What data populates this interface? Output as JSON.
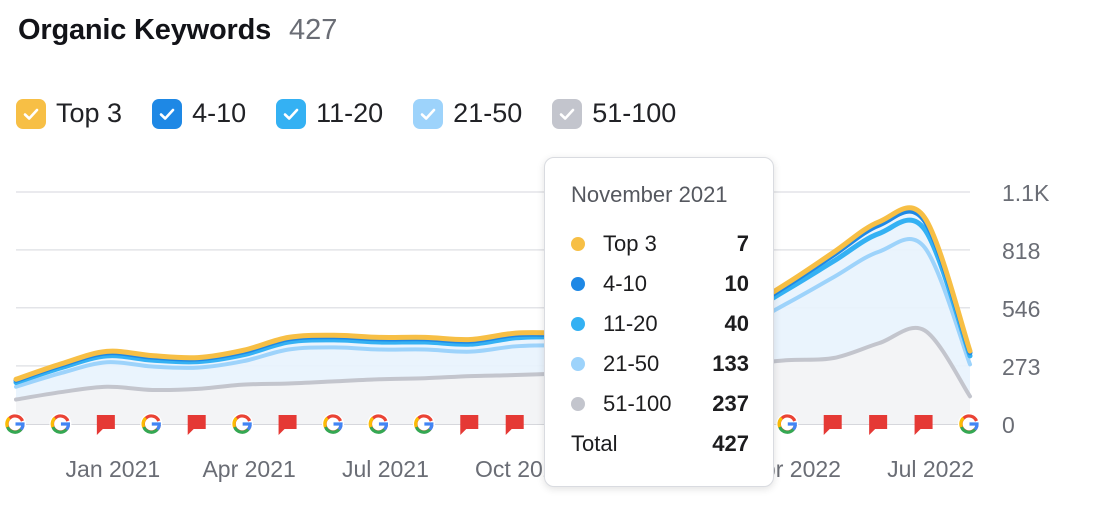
{
  "header": {
    "title": "Organic Keywords",
    "count": "427"
  },
  "legend": [
    {
      "label": "Top 3",
      "color": "#f7bf45"
    },
    {
      "label": "4-10",
      "color": "#1e88e5"
    },
    {
      "label": "11-20",
      "color": "#34b1f3"
    },
    {
      "label": "21-50",
      "color": "#9dd3fb"
    },
    {
      "label": "51-100",
      "color": "#c3c5cd"
    }
  ],
  "tooltip": {
    "title": "November 2021",
    "rows": [
      {
        "label": "Top 3",
        "value": "7",
        "color": "#f7bf45"
      },
      {
        "label": "4-10",
        "value": "10",
        "color": "#1e88e5"
      },
      {
        "label": "11-20",
        "value": "40",
        "color": "#34b1f3"
      },
      {
        "label": "21-50",
        "value": "133",
        "color": "#9dd3fb"
      },
      {
        "label": "51-100",
        "value": "237",
        "color": "#c3c5cd"
      }
    ],
    "total_label": "Total",
    "total_value": "427"
  },
  "chart_data": {
    "type": "area",
    "stacked": true,
    "x": [
      "2020-11",
      "2020-12",
      "2021-01",
      "2021-02",
      "2021-03",
      "2021-04",
      "2021-05",
      "2021-06",
      "2021-07",
      "2021-08",
      "2021-09",
      "2021-10",
      "2021-11",
      "2021-12",
      "2022-01",
      "2022-02",
      "2022-03",
      "2022-04",
      "2022-05",
      "2022-06",
      "2022-07",
      "2022-08"
    ],
    "series": [
      {
        "name": "51-100",
        "color": "#c3c5cd",
        "values": [
          115,
          150,
          175,
          160,
          165,
          185,
          190,
          200,
          210,
          215,
          225,
          230,
          237,
          240,
          250,
          260,
          280,
          300,
          310,
          380,
          440,
          130
        ]
      },
      {
        "name": "21-50",
        "color": "#9dd3fb",
        "values": [
          60,
          90,
          115,
          110,
          100,
          110,
          160,
          160,
          140,
          135,
          115,
          135,
          133,
          125,
          120,
          150,
          180,
          270,
          380,
          430,
          390,
          150
        ]
      },
      {
        "name": "11-20",
        "color": "#34b1f3",
        "values": [
          20,
          25,
          30,
          30,
          28,
          30,
          35,
          35,
          35,
          35,
          35,
          40,
          40,
          40,
          40,
          45,
          55,
          65,
          75,
          85,
          85,
          40
        ]
      },
      {
        "name": "4-10",
        "color": "#1e88e5",
        "values": [
          10,
          12,
          14,
          14,
          13,
          14,
          15,
          15,
          15,
          15,
          15,
          15,
          10,
          10,
          10,
          12,
          15,
          20,
          30,
          40,
          40,
          15
        ]
      },
      {
        "name": "Top 3",
        "color": "#f7bf45",
        "values": [
          5,
          6,
          7,
          7,
          6,
          7,
          7,
          7,
          7,
          7,
          7,
          7,
          7,
          7,
          7,
          8,
          9,
          10,
          12,
          15,
          15,
          8
        ]
      }
    ],
    "y_ticks": [
      "1.1K",
      "818",
      "546",
      "273",
      "0"
    ],
    "y_tick_values": [
      1090,
      818,
      546,
      273,
      0
    ],
    "ylim": [
      0,
      1090
    ],
    "x_tick_labels": [
      "Jan 2021",
      "Apr 2021",
      "Jul 2021",
      "Oct 2021",
      "Jan 2022",
      "Apr 2022",
      "Jul 2022"
    ],
    "x_tick_positions": [
      "2021-01",
      "2021-04",
      "2021-07",
      "2021-10",
      "2022-01",
      "2022-04",
      "2022-07"
    ],
    "hover": "2021-11",
    "markers": [
      "google",
      "google",
      "flag",
      "google",
      "flag",
      "google",
      "flag",
      "google",
      "google",
      "google",
      "flag",
      "flag",
      "google",
      "google",
      "flag",
      "flag",
      "google",
      "google",
      "flag",
      "flag",
      "flag",
      "google"
    ],
    "grid": true,
    "legend_position": "top-left"
  }
}
